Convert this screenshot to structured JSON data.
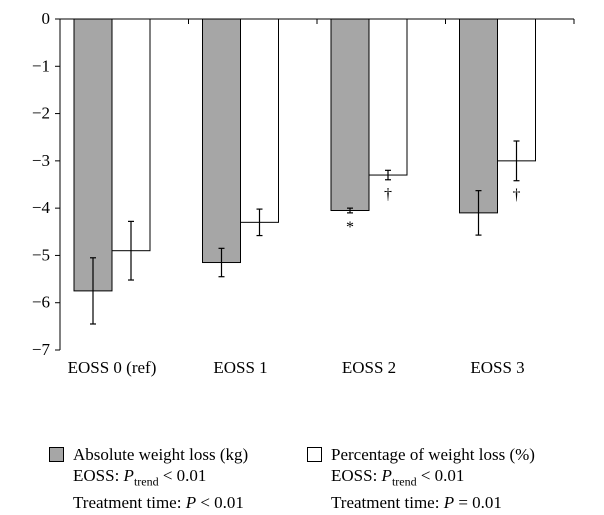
{
  "chart_data": {
    "type": "bar",
    "categories": [
      "EOSS 0 (ref)",
      "EOSS 1",
      "EOSS 2",
      "EOSS 3"
    ],
    "ylim": [
      -7,
      0
    ],
    "yticks": [
      "0",
      "−1",
      "−2",
      "−3",
      "−4",
      "−5",
      "−6",
      "−7"
    ],
    "ytick_values": [
      0,
      -1,
      -2,
      -3,
      -4,
      -5,
      -6,
      -7
    ],
    "series": [
      {
        "name": "Absolute weight loss (kg)",
        "color": "#a6a6a6",
        "values": [
          -5.75,
          -5.15,
          -4.05,
          -4.1
        ],
        "error": [
          0.7,
          0.3,
          0.05,
          0.47
        ],
        "markers": [
          "",
          "",
          "*",
          ""
        ]
      },
      {
        "name": "Percentage of weight loss (%)",
        "color": "#ffffff",
        "values": [
          -4.9,
          -4.3,
          -3.3,
          -3.0
        ],
        "error": [
          0.62,
          0.28,
          0.1,
          0.42
        ],
        "markers": [
          "",
          "",
          "†",
          "†"
        ]
      }
    ],
    "grid": false
  },
  "legend": {
    "abs": {
      "label": "Absolute weight loss (kg)",
      "eoss_prefix": "EOSS: ",
      "p_letter": "P",
      "p_sub": "trend",
      "eoss_value": " < 0.01",
      "time_prefix": "Treatment time: ",
      "time_value": " < 0.01"
    },
    "pct": {
      "label": "Percentage of weight loss (%)",
      "eoss_prefix": "EOSS: ",
      "p_letter": "P",
      "p_sub": "trend",
      "eoss_value": " < 0.01",
      "time_prefix": "Treatment time: ",
      "time_value": " = 0.01"
    }
  }
}
